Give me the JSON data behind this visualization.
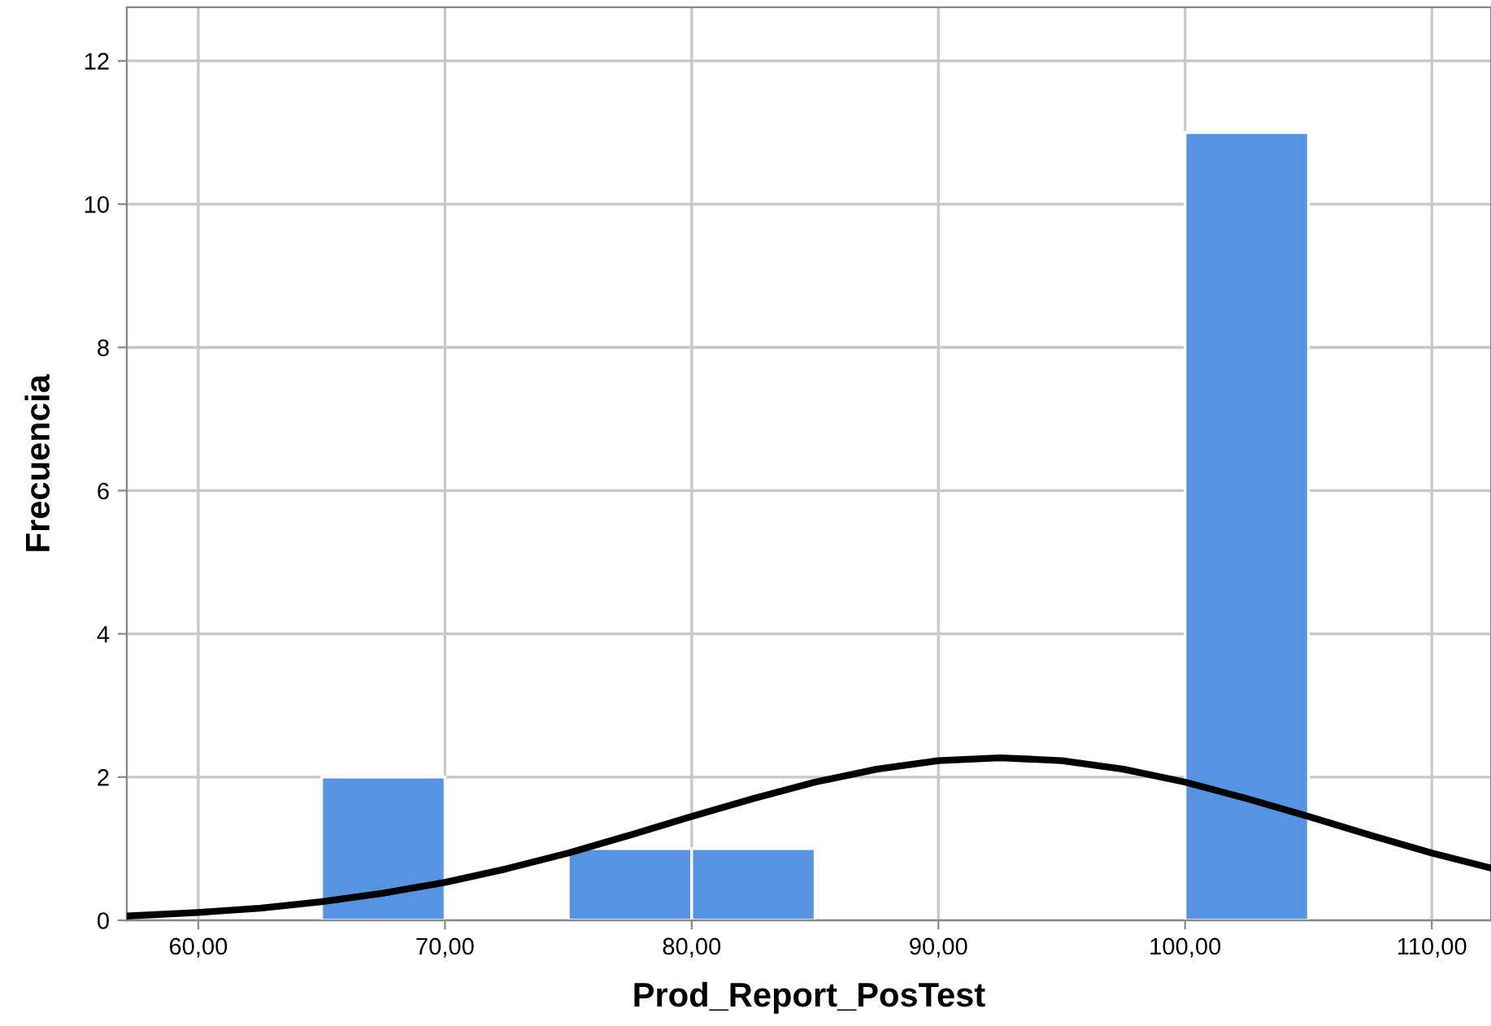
{
  "chart_data": {
    "type": "histogram",
    "xlabel": "Prod_Report_PosTest",
    "ylabel": "Frecuencia",
    "bins": [
      65,
      70,
      75,
      80,
      85,
      90,
      95,
      100,
      105
    ],
    "values": [
      2,
      0,
      1,
      1,
      0,
      0,
      0,
      11
    ],
    "color": "#5694e2",
    "series": [
      {
        "type": "line",
        "color": "#000000",
        "x": [
          57.1,
          60,
          62.5,
          65,
          67.5,
          70,
          72.5,
          75,
          77.5,
          80,
          82.5,
          85,
          87.5,
          90,
          92.5,
          95,
          97.5,
          100,
          102.5,
          105,
          107.5,
          110,
          112.4
        ],
        "values": [
          0.06,
          0.11,
          0.17,
          0.26,
          0.38,
          0.53,
          0.72,
          0.94,
          1.19,
          1.45,
          1.7,
          1.93,
          2.11,
          2.23,
          2.27,
          2.23,
          2.11,
          1.93,
          1.7,
          1.45,
          1.19,
          0.94,
          0.73
        ]
      }
    ],
    "xlim": [
      57.1,
      112.4
    ],
    "ylim": [
      0,
      12.75
    ],
    "xticks": [
      {
        "value": 60,
        "label": "60,00"
      },
      {
        "value": 70,
        "label": "70,00"
      },
      {
        "value": 80,
        "label": "80,00"
      },
      {
        "value": 90,
        "label": "90,00"
      },
      {
        "value": 100,
        "label": "100,00"
      },
      {
        "value": 110,
        "label": "110,00"
      }
    ],
    "yticks": [
      0,
      2,
      4,
      6,
      8,
      10,
      12
    ],
    "grid": true
  }
}
